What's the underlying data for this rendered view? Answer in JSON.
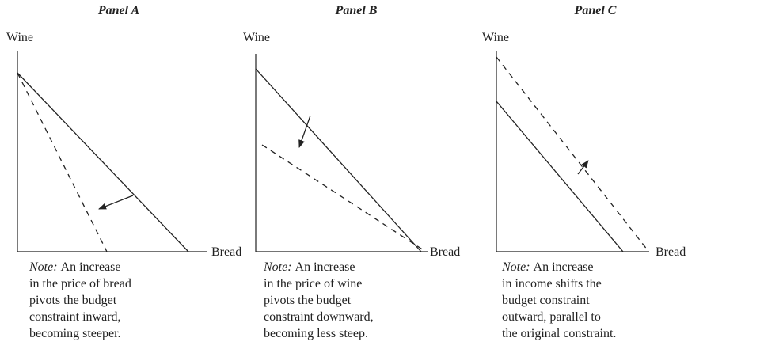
{
  "panels": [
    {
      "title": "Panel A",
      "y_axis_label": "Wine",
      "x_axis_label": "Bread",
      "note": {
        "lead": "Note:",
        "lines": [
          "An increase",
          "in the price of bread",
          "pivots the budget",
          "constraint inward,",
          "becoming steeper."
        ]
      }
    },
    {
      "title": "Panel B",
      "y_axis_label": "Wine",
      "x_axis_label": "Bread",
      "note": {
        "lead": "Note:",
        "lines": [
          "An increase",
          "in the price of wine",
          "pivots the budget",
          "constraint downward,",
          "becoming less steep."
        ]
      }
    },
    {
      "title": "Panel C",
      "y_axis_label": "Wine",
      "x_axis_label": "Bread",
      "note": {
        "lead": "Note:",
        "lines": [
          "An increase",
          "in income shifts the",
          "budget constraint",
          "outward, parallel to",
          "the original constraint."
        ]
      }
    }
  ]
}
